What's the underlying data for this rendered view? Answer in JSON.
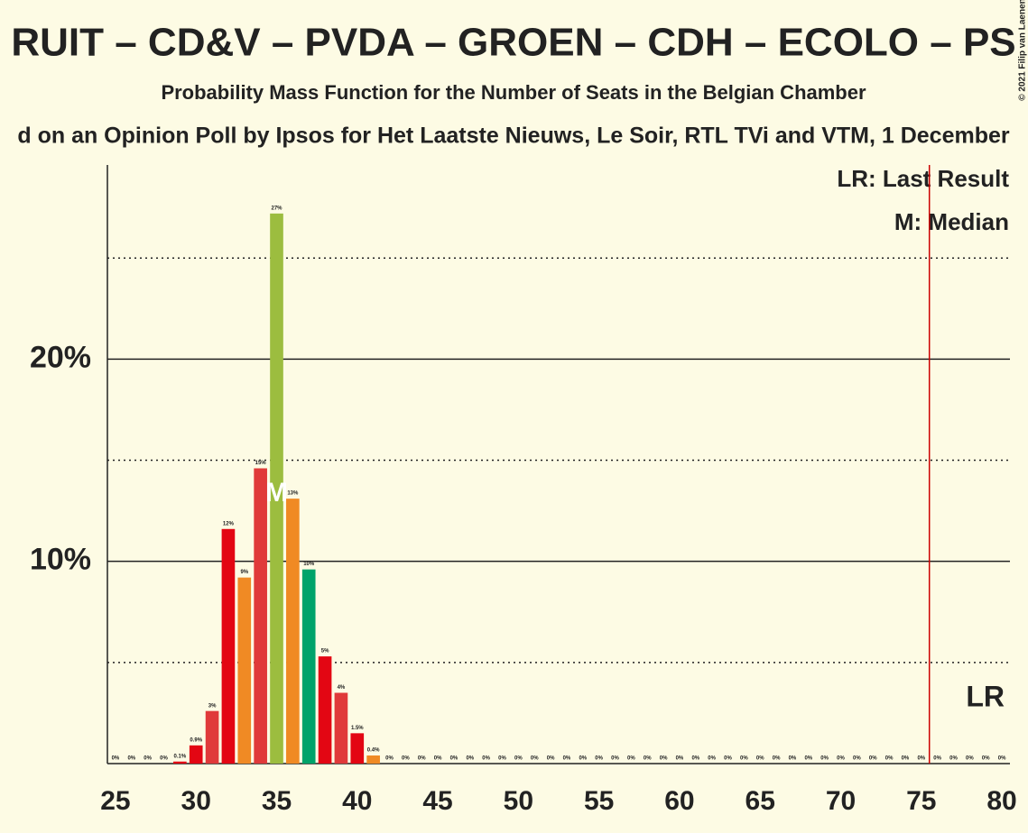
{
  "chart_data": {
    "type": "bar",
    "title": "RUIT – CD&V – PVDA – GROEN – CDH – ECOLO – PS",
    "subtitle": "Probability Mass Function for the Number of Seats in the Belgian Chamber",
    "subtitle2": "d on an Opinion Poll by Ipsos for Het Laatste Nieuws, Le Soir, RTL TVi and VTM, 1 December",
    "copyright": "© 2021 Filip van Laenen",
    "legend_last_result": "LR: Last Result",
    "legend_median": "M: Median",
    "last_result_label": "LR",
    "median_label": "M",
    "last_result": 76,
    "median": 35,
    "categories": [
      25,
      26,
      27,
      28,
      29,
      30,
      31,
      32,
      33,
      34,
      35,
      36,
      37,
      38,
      39,
      40,
      41,
      42,
      43,
      44,
      45,
      46,
      47,
      48,
      49,
      50,
      51,
      52,
      53,
      54,
      55,
      56,
      57,
      58,
      59,
      60,
      61,
      62,
      63,
      64,
      65,
      66,
      67,
      68,
      69,
      70,
      71,
      72,
      73,
      74,
      75,
      76,
      77,
      78,
      79,
      80
    ],
    "values": [
      0,
      0,
      0,
      0,
      0.1,
      0.9,
      2.6,
      11.6,
      9.2,
      14.6,
      27.2,
      13.1,
      9.6,
      5.3,
      3.5,
      1.5,
      0.4,
      0,
      0,
      0,
      0,
      0,
      0,
      0,
      0,
      0,
      0,
      0,
      0,
      0,
      0,
      0,
      0,
      0,
      0,
      0,
      0,
      0,
      0,
      0,
      0,
      0,
      0,
      0,
      0,
      0,
      0,
      0,
      0,
      0,
      0,
      0,
      0,
      0,
      0,
      0
    ],
    "value_labels": [
      "0%",
      "0%",
      "0%",
      "0%",
      "0.1%",
      "0.9%",
      "3%",
      "12%",
      "9%",
      "15%",
      "27%",
      "13%",
      "10%",
      "5%",
      "4%",
      "1.5%",
      "0.4%",
      "0%",
      "0%",
      "0%",
      "0%",
      "0%",
      "0%",
      "0%",
      "0%",
      "0%",
      "0%",
      "0%",
      "0%",
      "0%",
      "0%",
      "0%",
      "0%",
      "0%",
      "0%",
      "0%",
      "0%",
      "0%",
      "0%",
      "0%",
      "0%",
      "0%",
      "0%",
      "0%",
      "0%",
      "0%",
      "0%",
      "0%",
      "0%",
      "0%",
      "0%",
      "0%",
      "0%",
      "0%",
      "0%",
      "0%"
    ],
    "colors": [
      "#e30613",
      "#e30613",
      "#e30613",
      "#e30613",
      "#e30613",
      "#e30613",
      "#e03a3a",
      "#e30613",
      "#f08a24",
      "#e03a3a",
      "#9cbd3f",
      "#f08a24",
      "#00a36a",
      "#e30613",
      "#e03a3a",
      "#e30613",
      "#f08a24",
      "#e30613",
      "#e30613",
      "#e30613",
      "#e30613",
      "#e30613",
      "#e30613",
      "#e30613",
      "#e30613",
      "#e30613",
      "#e30613",
      "#e30613",
      "#e30613",
      "#e30613",
      "#e30613",
      "#e30613",
      "#e30613",
      "#e30613",
      "#e30613",
      "#e30613",
      "#e30613",
      "#e30613",
      "#e30613",
      "#e30613",
      "#e30613",
      "#e30613",
      "#e30613",
      "#e30613",
      "#e30613",
      "#e30613",
      "#e30613",
      "#e30613",
      "#e30613",
      "#e30613",
      "#e30613",
      "#e30613",
      "#e30613",
      "#e30613",
      "#e30613",
      "#e30613"
    ],
    "xlim": [
      24.5,
      80.5
    ],
    "xticks": [
      25,
      30,
      35,
      40,
      45,
      50,
      55,
      60,
      65,
      70,
      75,
      80
    ],
    "ylim": [
      0,
      29.6
    ],
    "yticks": [
      {
        "value": 10,
        "label": "10%"
      },
      {
        "value": 20,
        "label": "20%"
      }
    ],
    "minor_yticks": [
      5,
      15,
      25
    ],
    "grid": true
  }
}
